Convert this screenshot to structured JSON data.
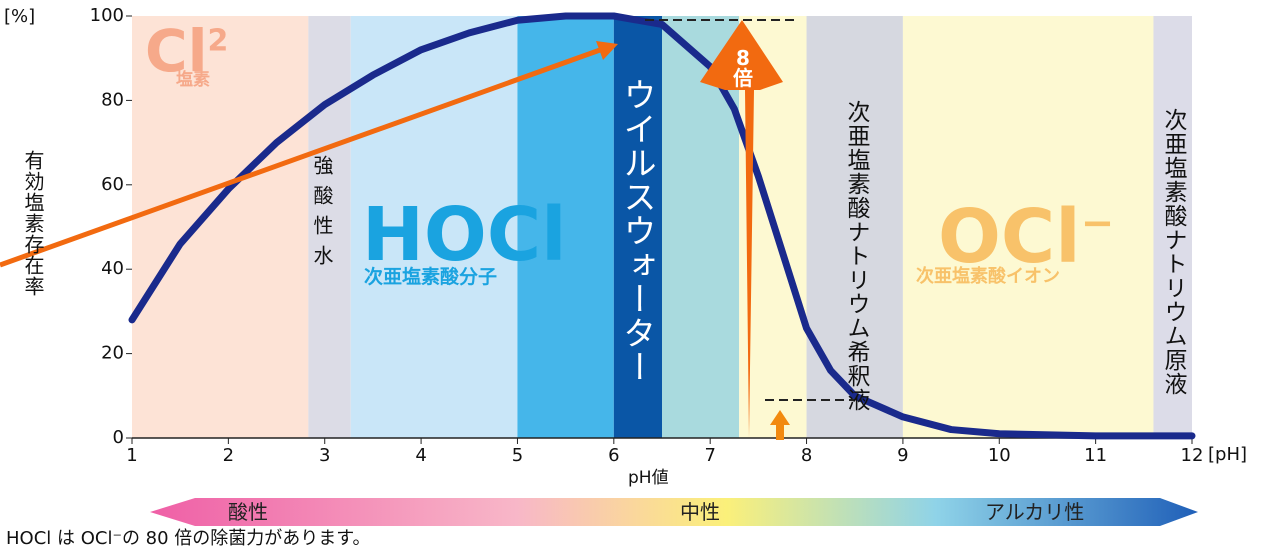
{
  "chart_data": {
    "type": "line",
    "x": [
      1,
      1.5,
      2,
      2.5,
      3,
      3.5,
      4,
      4.5,
      5,
      5.5,
      6,
      6.5,
      7,
      7.25,
      7.5,
      7.75,
      8,
      8.25,
      8.5,
      9,
      9.5,
      10,
      11,
      12
    ],
    "values": [
      28,
      46,
      59,
      70,
      79,
      86,
      92,
      96,
      99,
      100,
      100,
      98,
      88,
      78,
      62,
      44,
      26,
      16,
      10,
      5,
      2,
      1,
      0.5,
      0.5
    ],
    "color": "#1a2a8c",
    "xlim": [
      1,
      12
    ],
    "xticks": [
      1,
      2,
      3,
      4,
      5,
      6,
      7,
      8,
      9,
      10,
      11,
      12
    ],
    "ylim": [
      0,
      100
    ],
    "yticks": [
      0,
      20,
      40,
      60,
      80,
      100
    ],
    "x_unit": "[pH]",
    "y_unit": "[%]",
    "x_label": "pH値",
    "y_label": "有効塩素存在率",
    "regions": [
      {
        "x": [
          1,
          2.83
        ],
        "color": "#fde3d6"
      },
      {
        "x": [
          2.83,
          3.27
        ],
        "color": "#dcdce6"
      },
      {
        "x": [
          3.27,
          5
        ],
        "color": "#c9e6f8"
      },
      {
        "x": [
          5,
          6
        ],
        "color": "#45b6ea"
      },
      {
        "x": [
          6,
          6.5
        ],
        "color": "#0a56a6"
      },
      {
        "x": [
          6.5,
          7.3
        ],
        "color": "#a9dade"
      },
      {
        "x": [
          7.3,
          8
        ],
        "color": "#fdf9d2"
      },
      {
        "x": [
          8,
          9
        ],
        "color": "#d6d8e0"
      },
      {
        "x": [
          9,
          11.6
        ],
        "color": "#fdf9d2"
      },
      {
        "x": [
          11.6,
          12
        ],
        "color": "#dcdce8"
      }
    ],
    "annotations": {
      "cl2": "Cl",
      "cl2_sup": "2",
      "cl2_name": "塩素",
      "strong_acid": "強酸性水",
      "hocl": "HOCl",
      "hocl_name": "次亜塩素酸分子",
      "virus_water": "ウイルスウォーター",
      "times": "8倍",
      "diluted": "次亜塩素酸ナトリウム希釈液",
      "ocl": "OCl",
      "ocl_sup": "−",
      "ocl_name": "次亜塩素酸イオン",
      "stock": "次亜塩素酸ナトリウム原液"
    },
    "scale_labels": {
      "acidic": "酸性",
      "neutral": "中性",
      "alkaline": "アルカリ性"
    },
    "footnote": "HOCl は OCl⁻の 80 倍の除菌力があります。"
  }
}
